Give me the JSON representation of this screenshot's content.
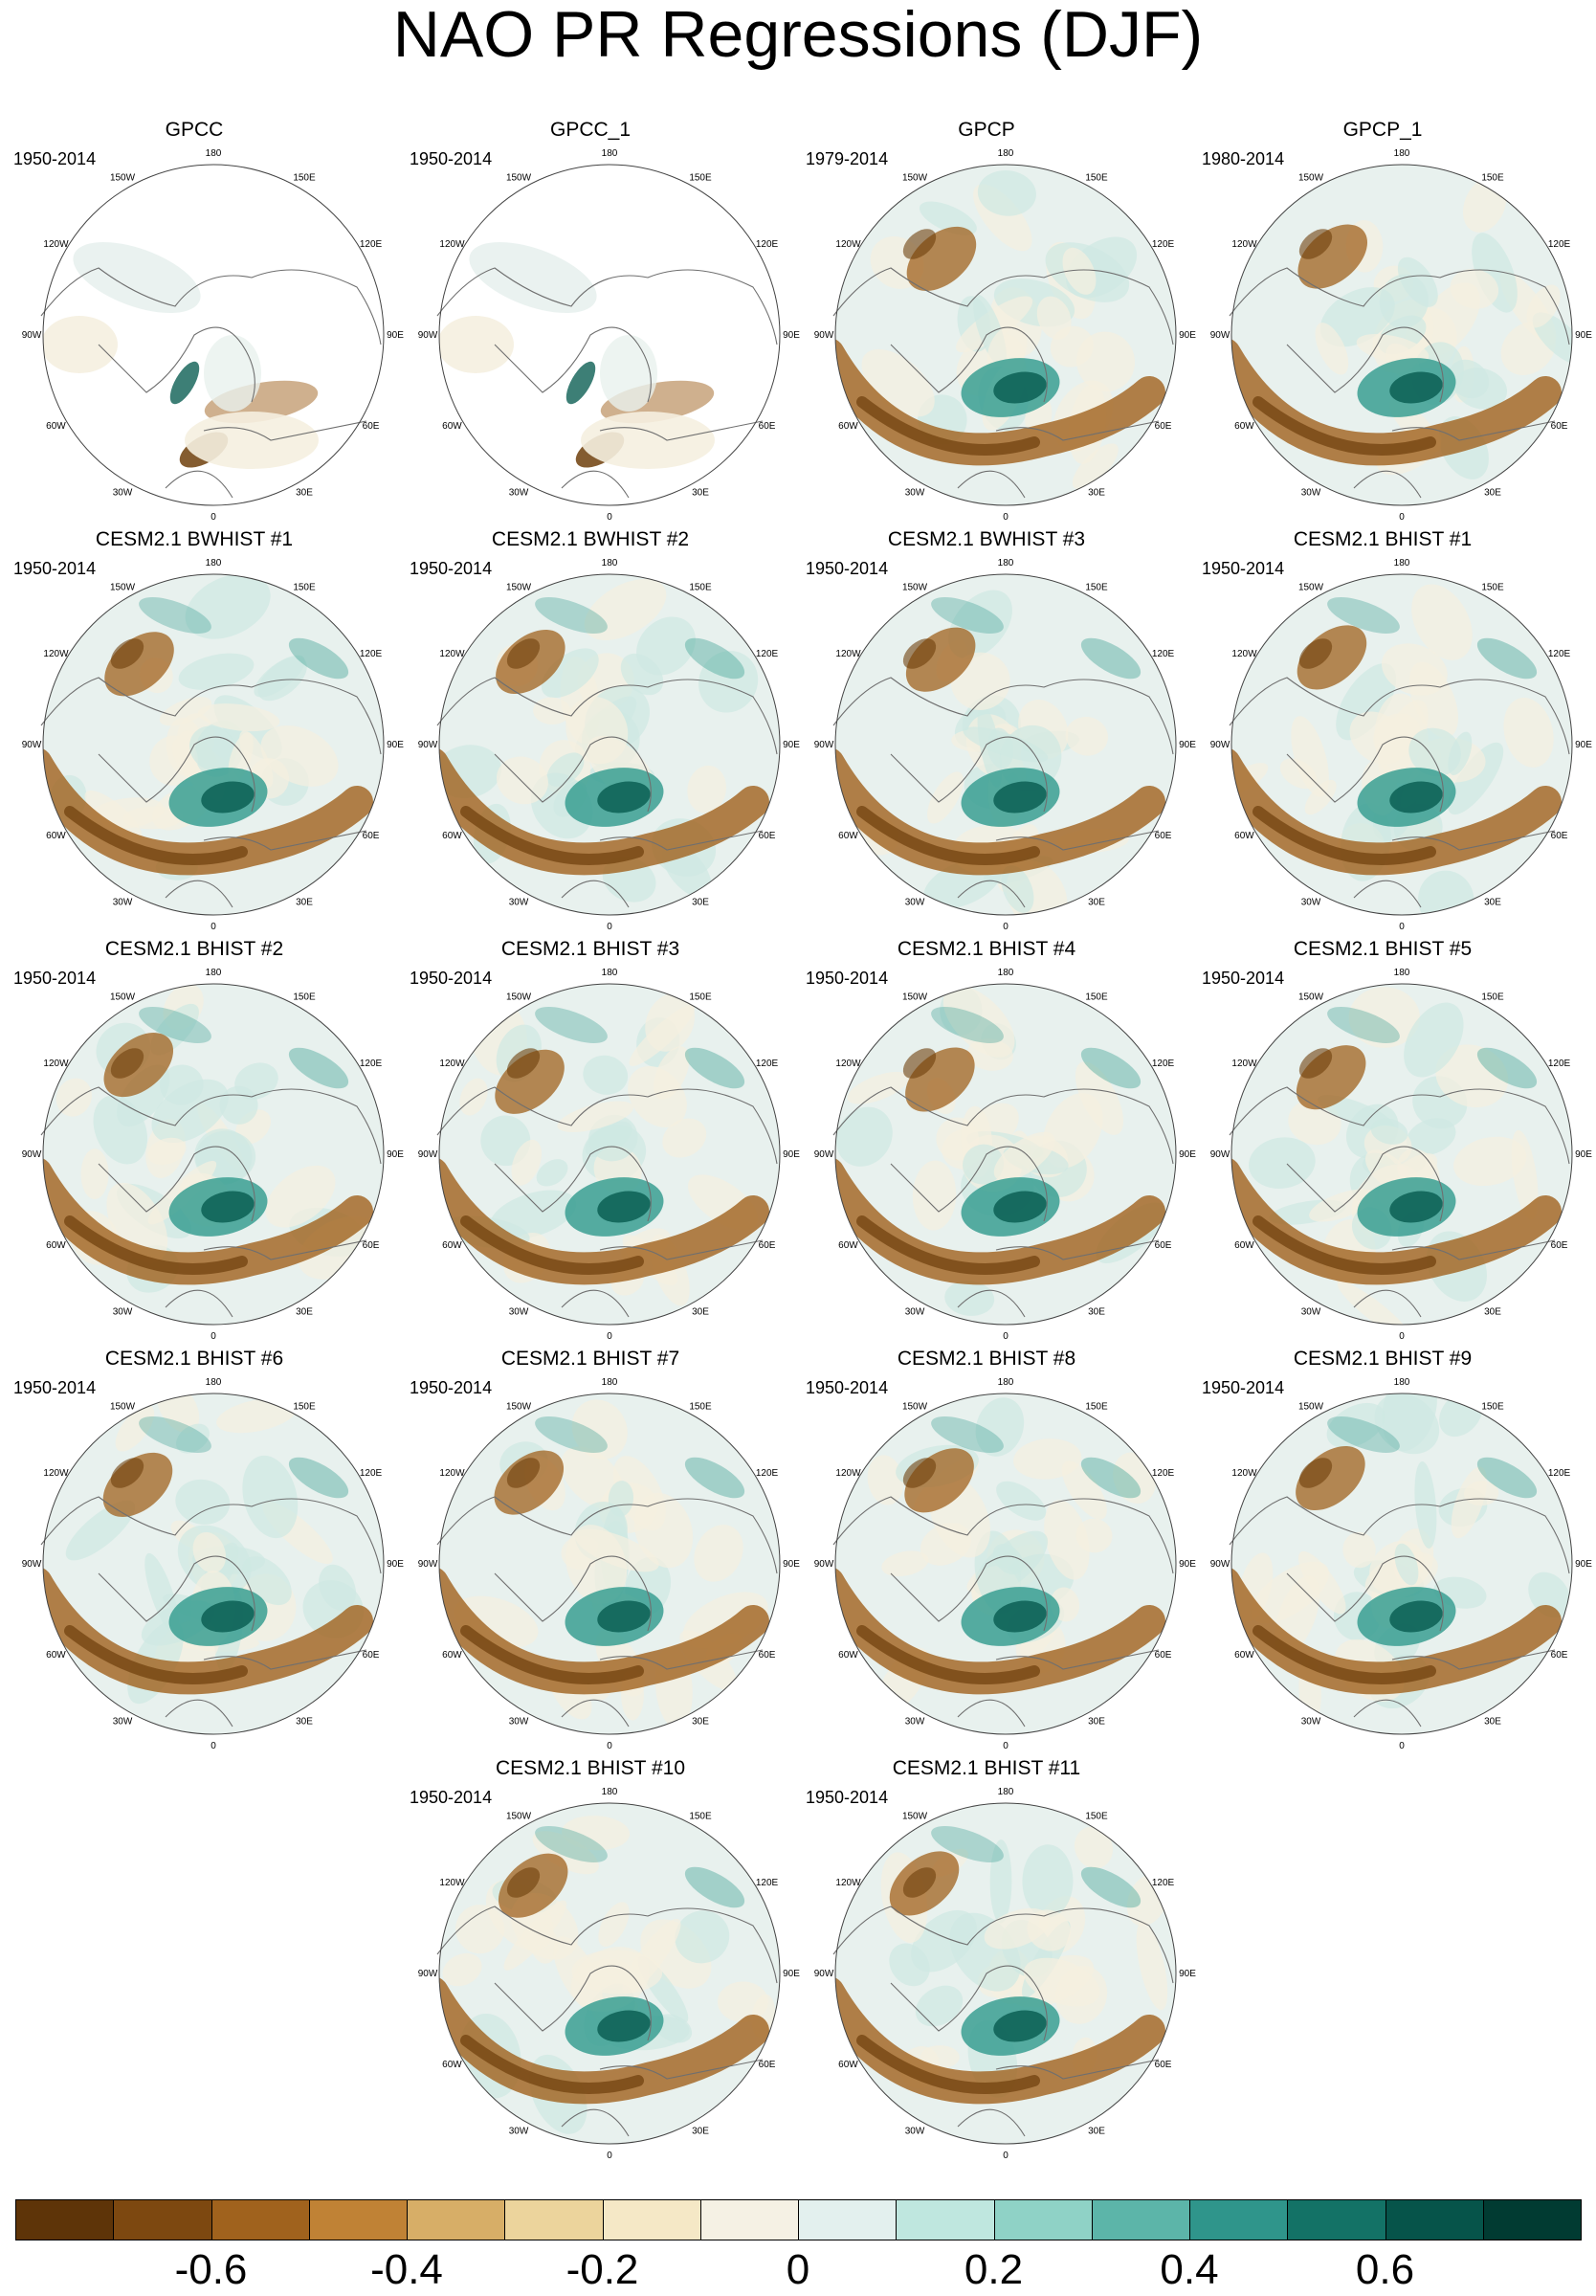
{
  "title": "NAO PR Regressions (DJF)",
  "lon_labels": [
    "180",
    "150E",
    "120E",
    "90E",
    "60E",
    "30E",
    "0",
    "30W",
    "60W",
    "90W",
    "120W",
    "150W"
  ],
  "panels": [
    {
      "title": "GPCC",
      "period": "1950-2014"
    },
    {
      "title": "GPCC_1",
      "period": "1950-2014"
    },
    {
      "title": "GPCP",
      "period": "1979-2014"
    },
    {
      "title": "GPCP_1",
      "period": "1980-2014"
    },
    {
      "title": "CESM2.1 BWHIST #1",
      "period": "1950-2014"
    },
    {
      "title": "CESM2.1 BWHIST #2",
      "period": "1950-2014"
    },
    {
      "title": "CESM2.1 BWHIST #3",
      "period": "1950-2014"
    },
    {
      "title": "CESM2.1 BHIST #1",
      "period": "1950-2014"
    },
    {
      "title": "CESM2.1 BHIST #2",
      "period": "1950-2014"
    },
    {
      "title": "CESM2.1 BHIST #3",
      "period": "1950-2014"
    },
    {
      "title": "CESM2.1 BHIST #4",
      "period": "1950-2014"
    },
    {
      "title": "CESM2.1 BHIST #5",
      "period": "1950-2014"
    },
    {
      "title": "CESM2.1 BHIST #6",
      "period": "1950-2014"
    },
    {
      "title": "CESM2.1 BHIST #7",
      "period": "1950-2014"
    },
    {
      "title": "CESM2.1 BHIST #8",
      "period": "1950-2014"
    },
    {
      "title": "CESM2.1 BHIST #9",
      "period": "1950-2014"
    },
    {
      "title": "CESM2.1 BHIST #10",
      "period": "1950-2014"
    },
    {
      "title": "CESM2.1 BHIST #11",
      "period": "1950-2014"
    }
  ],
  "colorbar": {
    "colors": [
      "#5e3408",
      "#7d4810",
      "#a0621d",
      "#c08235",
      "#d7ae67",
      "#ecd49c",
      "#f5e8c6",
      "#f5f1e4",
      "#e3f0ee",
      "#bfe7df",
      "#8fd2c6",
      "#5cb5a9",
      "#2f958b",
      "#137266",
      "#06544a",
      "#013b32"
    ],
    "tick_labels": [
      "-0.6",
      "-0.4",
      "-0.2",
      "0",
      "0.2",
      "0.4",
      "0.6"
    ]
  },
  "colors": {
    "ocean_base": "#e8f1ee",
    "neutral": "#f5efe0",
    "brown": "#a0621d",
    "dark_brown": "#6e3f0c",
    "teal": "#3a9f92",
    "dark_teal": "#0c5f54",
    "coast": "#6f6f6f",
    "missing": "#ffffff"
  }
}
